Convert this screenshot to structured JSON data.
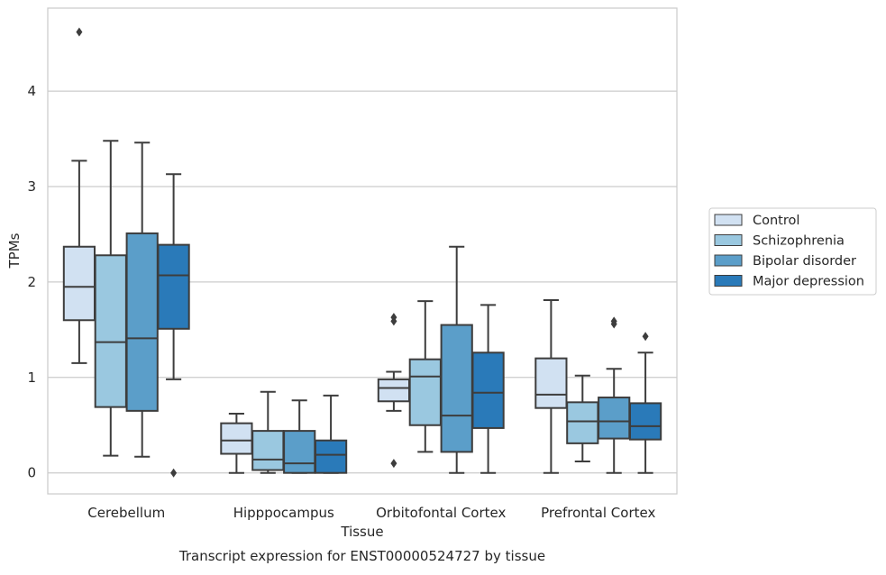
{
  "chart_data": {
    "type": "box",
    "xlabel": "Tissue",
    "ylabel": "TPMs",
    "caption": "Transcript expression for ENST00000524727 by tissue",
    "ylim": [
      -0.22,
      4.87
    ],
    "yticks": [
      0,
      1,
      2,
      3,
      4
    ],
    "grid": "horizontal",
    "legend_position": "right",
    "categories": [
      "Cerebellum",
      "Hipppocampus",
      "Orbitofontal Cortex",
      "Prefrontal Cortex"
    ],
    "series": [
      {
        "name": "Control",
        "color": "#d1e1f2",
        "boxes": [
          {
            "whisker_low": 1.15,
            "q1": 1.6,
            "median": 1.95,
            "q3": 2.37,
            "whisker_high": 3.27,
            "outliers": [
              4.62
            ]
          },
          {
            "whisker_low": 0.0,
            "q1": 0.2,
            "median": 0.34,
            "q3": 0.52,
            "whisker_high": 0.62,
            "outliers": []
          },
          {
            "whisker_low": 0.65,
            "q1": 0.75,
            "median": 0.89,
            "q3": 0.98,
            "whisker_high": 1.06,
            "outliers": [
              0.1,
              1.59,
              1.63
            ]
          },
          {
            "whisker_low": 0.0,
            "q1": 0.68,
            "median": 0.82,
            "q3": 1.2,
            "whisker_high": 1.81,
            "outliers": []
          }
        ]
      },
      {
        "name": "Schizophrenia",
        "color": "#9ac8e0",
        "boxes": [
          {
            "whisker_low": 0.18,
            "q1": 0.69,
            "median": 1.37,
            "q3": 2.28,
            "whisker_high": 3.48,
            "outliers": []
          },
          {
            "whisker_low": 0.0,
            "q1": 0.03,
            "median": 0.14,
            "q3": 0.44,
            "whisker_high": 0.85,
            "outliers": []
          },
          {
            "whisker_low": 0.22,
            "q1": 0.5,
            "median": 1.01,
            "q3": 1.19,
            "whisker_high": 1.8,
            "outliers": []
          },
          {
            "whisker_low": 0.12,
            "q1": 0.31,
            "median": 0.54,
            "q3": 0.74,
            "whisker_high": 1.02,
            "outliers": []
          }
        ]
      },
      {
        "name": "Bipolar disorder",
        "color": "#5b9ec9",
        "boxes": [
          {
            "whisker_low": 0.17,
            "q1": 0.65,
            "median": 1.41,
            "q3": 2.51,
            "whisker_high": 3.46,
            "outliers": []
          },
          {
            "whisker_low": 0.0,
            "q1": 0.0,
            "median": 0.1,
            "q3": 0.44,
            "whisker_high": 0.76,
            "outliers": []
          },
          {
            "whisker_low": 0.0,
            "q1": 0.22,
            "median": 0.6,
            "q3": 1.55,
            "whisker_high": 2.37,
            "outliers": []
          },
          {
            "whisker_low": 0.0,
            "q1": 0.36,
            "median": 0.54,
            "q3": 0.79,
            "whisker_high": 1.09,
            "outliers": [
              1.56,
              1.59
            ]
          }
        ]
      },
      {
        "name": "Major depression",
        "color": "#2a7ab9",
        "boxes": [
          {
            "whisker_low": 0.98,
            "q1": 1.51,
            "median": 2.07,
            "q3": 2.39,
            "whisker_high": 3.13,
            "outliers": [
              0.0
            ]
          },
          {
            "whisker_low": 0.0,
            "q1": 0.0,
            "median": 0.19,
            "q3": 0.34,
            "whisker_high": 0.81,
            "outliers": []
          },
          {
            "whisker_low": 0.0,
            "q1": 0.47,
            "median": 0.84,
            "q3": 1.26,
            "whisker_high": 1.76,
            "outliers": []
          },
          {
            "whisker_low": 0.0,
            "q1": 0.35,
            "median": 0.49,
            "q3": 0.73,
            "whisker_high": 1.26,
            "outliers": [
              1.43
            ]
          }
        ]
      }
    ]
  }
}
